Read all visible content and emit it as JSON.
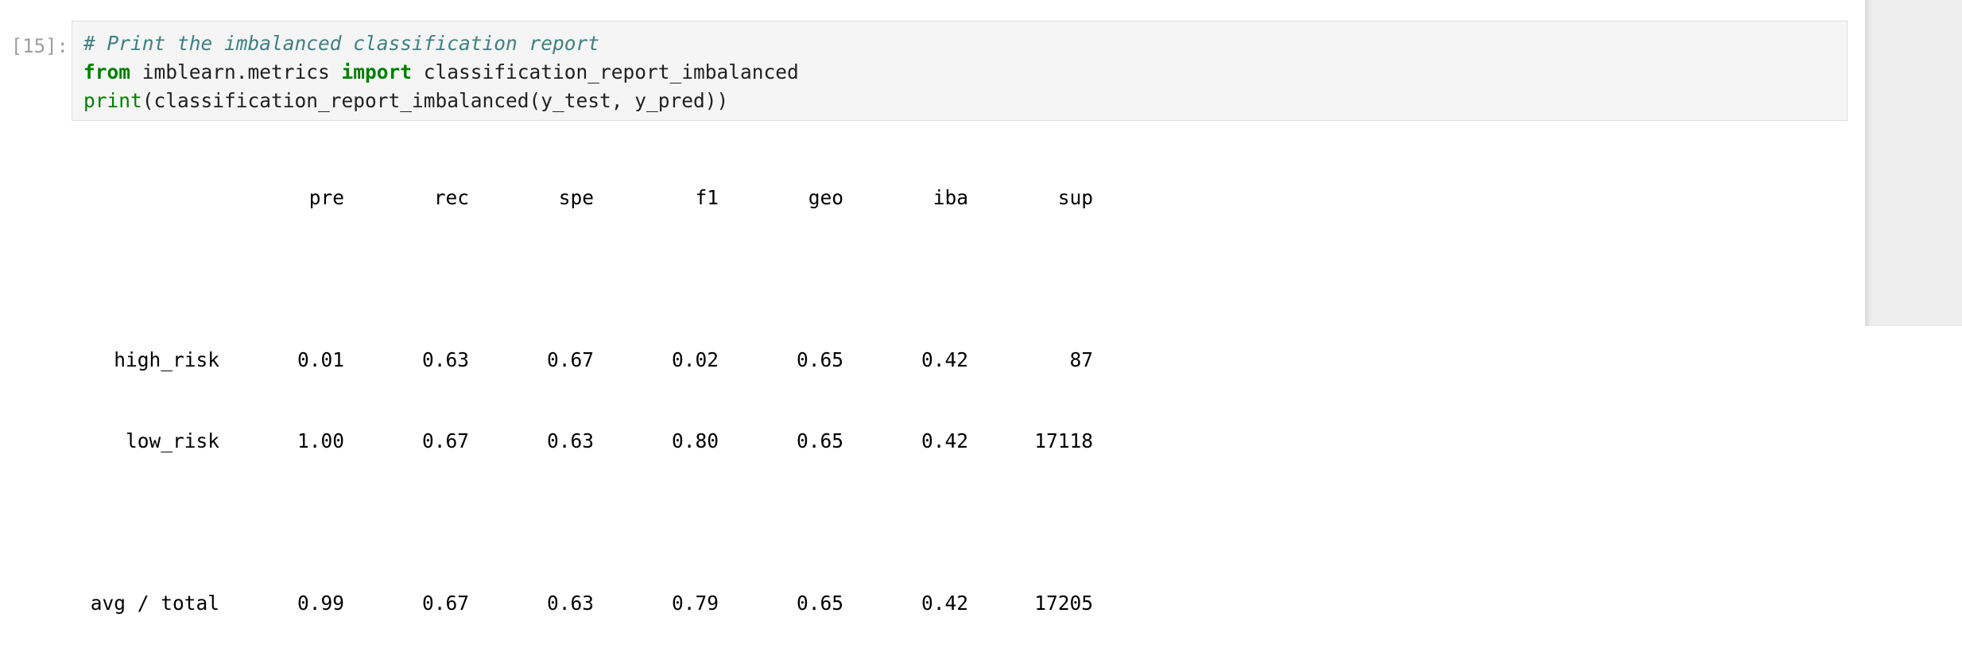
{
  "cell": {
    "prompt": "[15]:",
    "code": {
      "comment": "# Print the imbalanced classification report",
      "line2": {
        "kw_from": "from",
        "module": " imblearn.metrics ",
        "kw_import": "import",
        "name": " classification_report_imbalanced"
      },
      "line3": {
        "builtin": "print",
        "args": "(classification_report_imbalanced(y_test, y_pred))"
      }
    }
  },
  "report": {
    "headers": [
      "pre",
      "rec",
      "spe",
      "f1",
      "geo",
      "iba",
      "sup"
    ],
    "rows": [
      {
        "label": "high_risk",
        "values": [
          "0.01",
          "0.63",
          "0.67",
          "0.02",
          "0.65",
          "0.42",
          "87"
        ]
      },
      {
        "label": "low_risk",
        "values": [
          "1.00",
          "0.67",
          "0.63",
          "0.80",
          "0.65",
          "0.42",
          "17118"
        ]
      }
    ],
    "total": {
      "label": "avg / total",
      "values": [
        "0.99",
        "0.67",
        "0.63",
        "0.79",
        "0.65",
        "0.42",
        "17205"
      ]
    }
  }
}
